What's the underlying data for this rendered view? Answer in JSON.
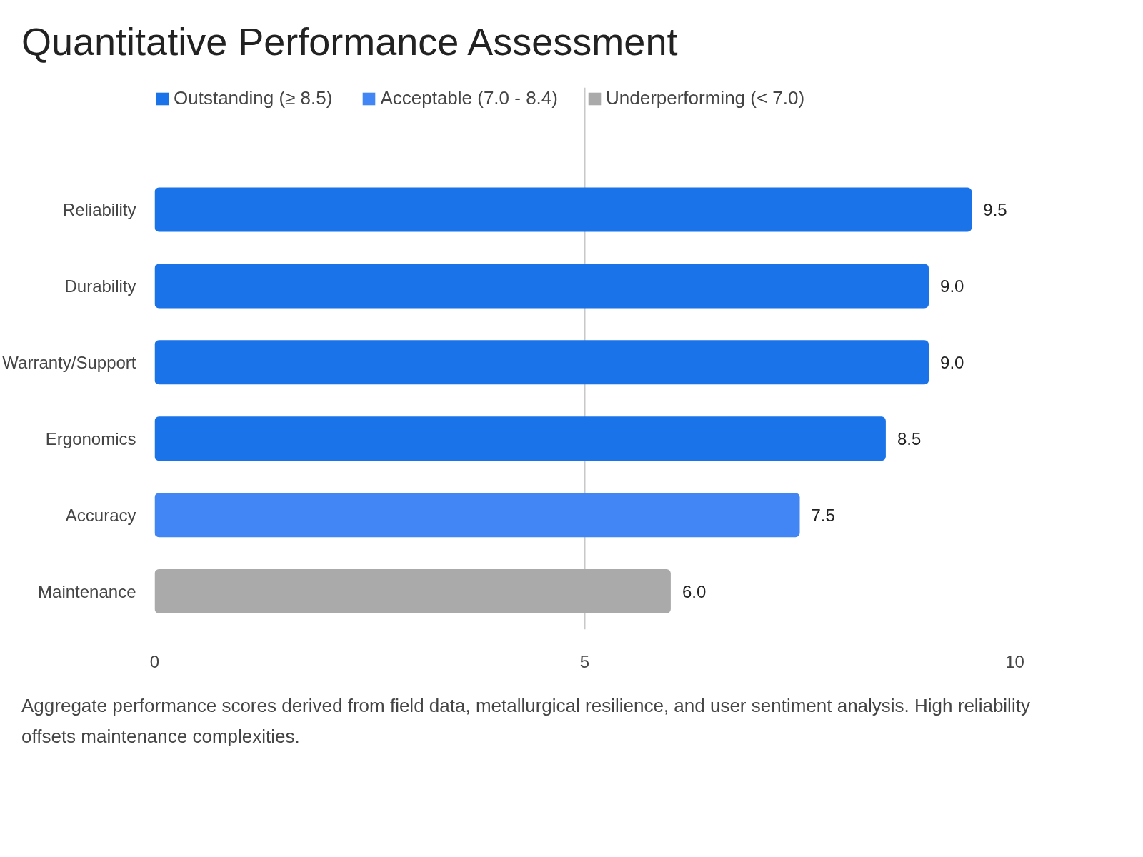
{
  "chart_data": {
    "type": "bar",
    "orientation": "horizontal",
    "title": "Quantitative Performance Assessment",
    "categories": [
      "Reliability",
      "Durability",
      "Warranty/Support",
      "Ergonomics",
      "Accuracy",
      "Maintenance"
    ],
    "series": [
      {
        "name": "Outstanding (≥ 8.5)",
        "color": "#1a73e8",
        "values": [
          9.5,
          9.0,
          9.0,
          8.5,
          null,
          null
        ],
        "value_labels": [
          "9.5",
          "9.0",
          "9.0",
          "8.5",
          null,
          null
        ]
      },
      {
        "name": "Acceptable (7.0 - 8.4)",
        "color": "#4285f4",
        "values": [
          null,
          null,
          null,
          null,
          7.5,
          null
        ],
        "value_labels": [
          null,
          null,
          null,
          null,
          "7.5",
          null
        ]
      },
      {
        "name": "Underperforming (< 7.0)",
        "color": "#aaaaaa",
        "values": [
          null,
          null,
          null,
          null,
          null,
          6.0
        ],
        "value_labels": [
          null,
          null,
          null,
          null,
          null,
          "6.0"
        ]
      }
    ],
    "xlim": [
      0,
      10
    ],
    "xticks": [
      0,
      5,
      10
    ],
    "grid": "x",
    "legend": "top left",
    "annotations": [
      "Aggregate performance scores derived from field data, metallurgical resilience, and user sentiment analysis. High reliability offsets maintenance complexities."
    ]
  }
}
